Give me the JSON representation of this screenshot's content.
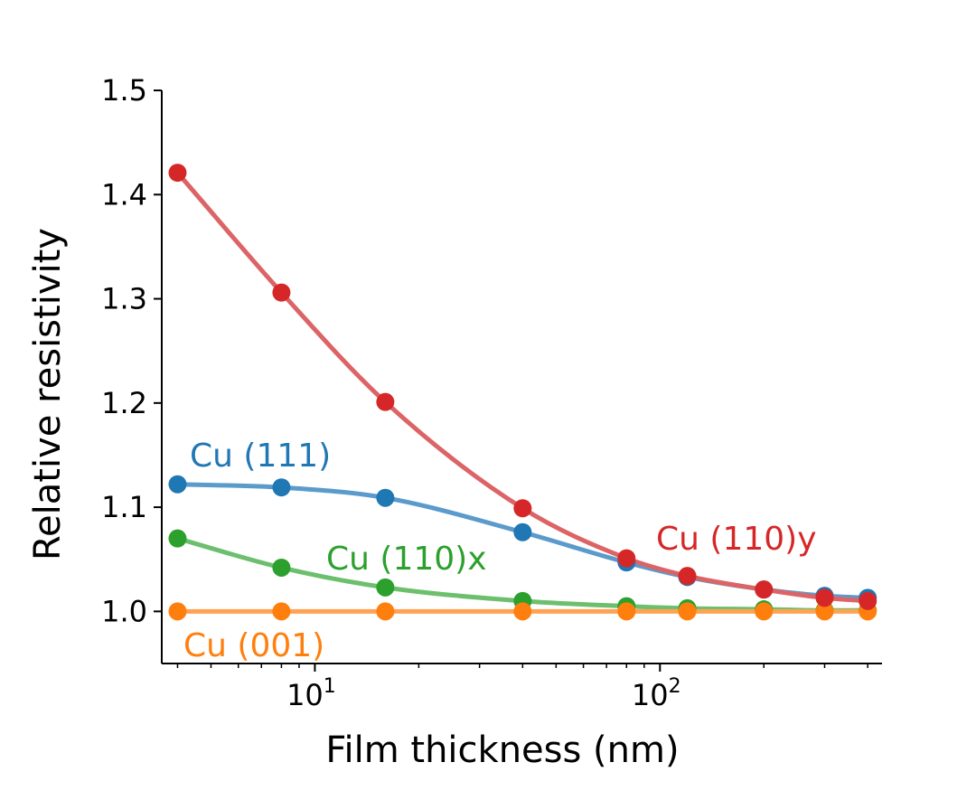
{
  "chart_data": {
    "type": "line",
    "xlabel": "Film thickness (nm)",
    "ylabel": "Relative resistivity",
    "x_scale": "log",
    "xlim": [
      3.6,
      440
    ],
    "ylim": [
      0.95,
      1.5
    ],
    "x_major_ticks": [
      {
        "value": 10,
        "base": "10",
        "exp": "1"
      },
      {
        "value": 100,
        "base": "10",
        "exp": "2"
      }
    ],
    "y_ticks": [
      "1.0",
      "1.1",
      "1.2",
      "1.3",
      "1.4",
      "1.5"
    ],
    "grid": false,
    "x": [
      4,
      8,
      16,
      40,
      80,
      120,
      200,
      300,
      400
    ],
    "series": [
      {
        "name": "Cu (111)",
        "color": "#1f77b4",
        "line_color": "#5a9bcc",
        "values": [
          1.122,
          1.119,
          1.109,
          1.076,
          1.047,
          1.033,
          1.021,
          1.015,
          1.013
        ]
      },
      {
        "name": "Cu (110)y",
        "color": "#d62728",
        "line_color": "#dc6466",
        "values": [
          1.421,
          1.306,
          1.201,
          1.099,
          1.051,
          1.034,
          1.021,
          1.013,
          1.01
        ]
      },
      {
        "name": "Cu (110)x",
        "color": "#2ca02c",
        "line_color": "#6cbf6c",
        "values": [
          1.07,
          1.042,
          1.023,
          1.01,
          1.005,
          1.003,
          1.002,
          1.001,
          1.001
        ]
      },
      {
        "name": "Cu (001)",
        "color": "#ff7f0e",
        "line_color": "#ffa253",
        "values": [
          1.0,
          1.0,
          1.0,
          1.0,
          1.0,
          1.0,
          1.0,
          1.0,
          1.0
        ]
      }
    ]
  }
}
